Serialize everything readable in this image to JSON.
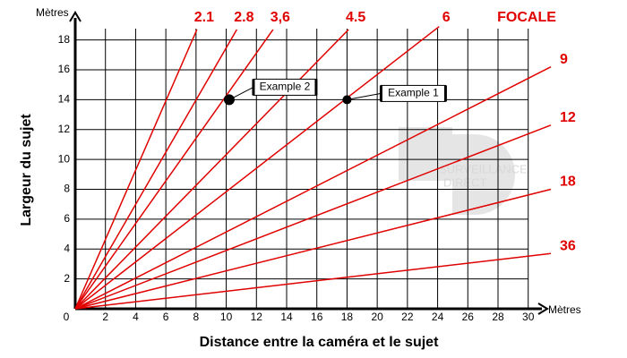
{
  "chart_data": {
    "type": "line",
    "x_unit": "Mètres",
    "y_unit": "Mètres",
    "xlabel": "Distance entre la caméra et le sujet",
    "ylabel": "Largeur du sujet",
    "legend_title": "FOCALE",
    "color": "#e00000",
    "xlim": [
      0,
      31.5
    ],
    "ylim": [
      0,
      19
    ],
    "xticks": [
      0,
      2,
      4,
      6,
      8,
      10,
      12,
      14,
      16,
      18,
      20,
      22,
      24,
      26,
      28,
      30
    ],
    "yticks": [
      2,
      4,
      6,
      8,
      10,
      12,
      14,
      16,
      18
    ],
    "grid": true,
    "series": [
      {
        "name": "2.1",
        "color": "#e00000",
        "x": [
          0,
          8.06
        ],
        "values": [
          0,
          18.7
        ]
      },
      {
        "name": "2.8",
        "color": "#e00000",
        "x": [
          0,
          10.7
        ],
        "values": [
          0,
          18.7
        ]
      },
      {
        "name": "3,6",
        "color": "#e00000",
        "x": [
          0,
          13.1
        ],
        "values": [
          0,
          18.7
        ]
      },
      {
        "name": "4.5",
        "color": "#e00000",
        "x": [
          0,
          18.1
        ],
        "values": [
          0,
          18.7
        ]
      },
      {
        "name": "6",
        "color": "#e00000",
        "x": [
          0,
          24.1
        ],
        "values": [
          0,
          18.9
        ]
      },
      {
        "name": "9",
        "color": "#e00000",
        "x": [
          0,
          31.5
        ],
        "values": [
          0,
          16.2
        ]
      },
      {
        "name": "12",
        "color": "#e00000",
        "x": [
          0,
          31.5
        ],
        "values": [
          0,
          12.3
        ]
      },
      {
        "name": "18",
        "color": "#e00000",
        "x": [
          0,
          31.5
        ],
        "values": [
          0,
          8.0
        ]
      },
      {
        "name": "36",
        "color": "#e00000",
        "x": [
          0,
          31.5
        ],
        "values": [
          0,
          3.7
        ]
      }
    ],
    "examples": [
      {
        "label": "Example 1",
        "x": 18,
        "y": 14
      },
      {
        "label": "Example 2",
        "x": 10.2,
        "y": 14
      }
    ],
    "watermark": [
      "SURVEILLANCE",
      "DIRECT"
    ]
  }
}
